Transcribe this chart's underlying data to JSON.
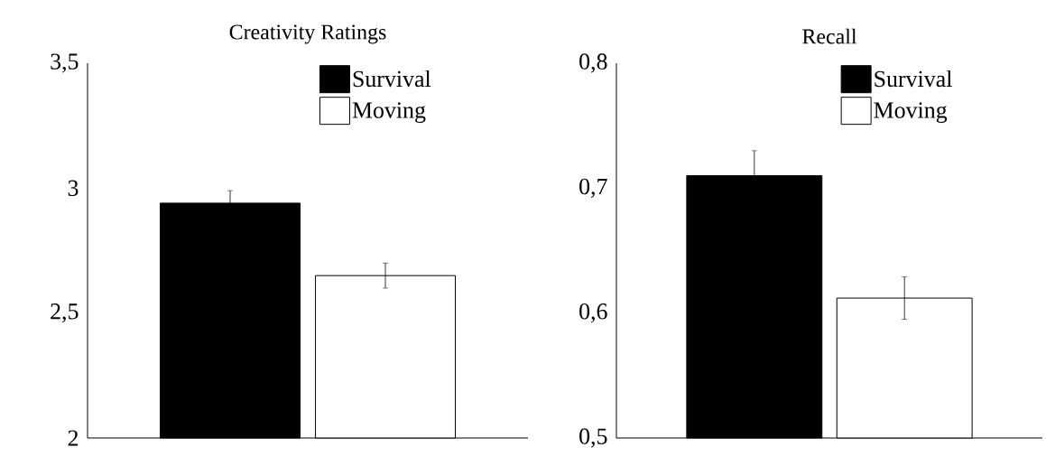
{
  "chart_data": [
    {
      "type": "bar",
      "title": "Creativity Ratings",
      "categories": [
        null
      ],
      "series": [
        {
          "name": "Survival",
          "color": "#000000",
          "values": [
            2.94
          ],
          "errors": [
            0.05
          ]
        },
        {
          "name": "Moving",
          "color": "#ffffff",
          "values": [
            2.65
          ],
          "errors": [
            0.05
          ]
        }
      ],
      "ylim": [
        2,
        3.5
      ],
      "yticks": [
        2,
        {
          "value": 2.5,
          "label": "2,5"
        },
        3,
        {
          "value": 3.5,
          "label": "3,5"
        }
      ],
      "legend": "top right"
    },
    {
      "type": "bar",
      "title": "Recall",
      "categories": [
        null
      ],
      "series": [
        {
          "name": "Survival",
          "color": "#000000",
          "values": [
            0.71
          ],
          "errors": [
            0.02
          ]
        },
        {
          "name": "Moving",
          "color": "#ffffff",
          "values": [
            0.612
          ],
          "errors": [
            0.017
          ]
        }
      ],
      "ylim": [
        0.5,
        0.8
      ],
      "yticks": [
        {
          "value": 0.5,
          "label": "0,5"
        },
        {
          "value": 0.6,
          "label": "0,6"
        },
        {
          "value": 0.7,
          "label": "0,7"
        },
        {
          "value": 0.8,
          "label": "0,8"
        }
      ],
      "legend": "top right"
    }
  ]
}
